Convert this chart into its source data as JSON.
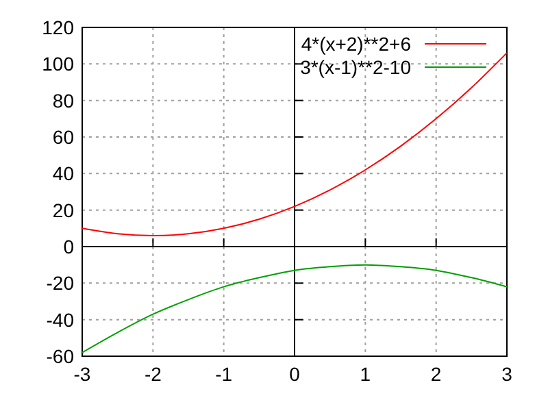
{
  "chart_data": {
    "type": "line",
    "x": [
      -3,
      -2.5,
      -2,
      -1.5,
      -1,
      -0.5,
      0,
      0.5,
      1,
      1.5,
      2,
      2.5,
      3
    ],
    "series": [
      {
        "name": "4*(x+2)**2+6",
        "color": "#ff0000",
        "values": [
          10,
          7,
          6,
          7,
          10,
          15,
          22,
          31,
          42,
          55,
          70,
          87,
          106
        ]
      },
      {
        "name": "3*(x-1)**2-10",
        "color": "#00a000",
        "values": [
          -58,
          -47,
          -37,
          -29,
          -22,
          -17,
          -13,
          -11,
          -10,
          -11,
          -13,
          -17,
          -22
        ]
      }
    ],
    "xlim": [
      -3,
      3
    ],
    "ylim": [
      -60,
      120
    ],
    "xticks": [
      -3,
      -2,
      -1,
      0,
      1,
      2,
      3
    ],
    "yticks": [
      -60,
      -40,
      -20,
      0,
      20,
      40,
      60,
      80,
      100,
      120
    ],
    "grid": true,
    "legend": "top right",
    "line_style": "solid"
  }
}
